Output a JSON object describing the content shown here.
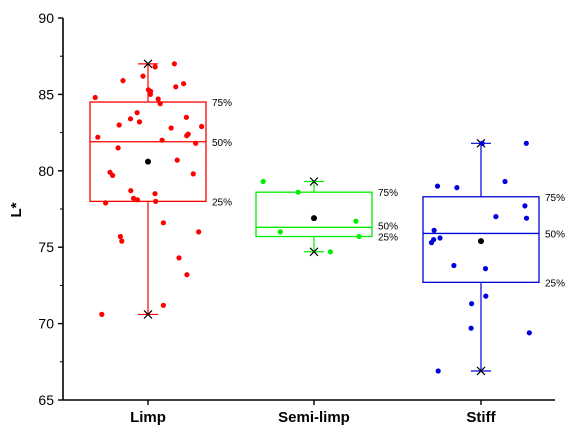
{
  "chart_data": {
    "type": "box",
    "ylabel": "L*",
    "ylim": [
      65,
      90
    ],
    "yticks": [
      "65",
      "70",
      "75",
      "80",
      "85",
      "90"
    ],
    "categories": [
      "Limp",
      "Semi-limp",
      "Stiff"
    ],
    "percentile_labels": [
      "75%",
      "50%",
      "25%"
    ],
    "groups": [
      {
        "name": "Limp",
        "color": "#ff0000",
        "whisker_low": 70.6,
        "q1": 78.0,
        "median": 81.9,
        "q3": 84.5,
        "whisker_high": 87.0,
        "mean": 80.6,
        "points": [
          87.0,
          86.8,
          86.2,
          85.9,
          85.7,
          85.5,
          85.3,
          85.2,
          85.0,
          84.8,
          84.7,
          84.4,
          83.8,
          83.5,
          83.4,
          83.2,
          83.0,
          82.9,
          82.8,
          82.4,
          82.3,
          82.2,
          82.0,
          81.8,
          81.5,
          80.7,
          79.9,
          79.8,
          79.7,
          78.7,
          78.5,
          78.2,
          78.1,
          78.0,
          77.9,
          76.6,
          76.0,
          75.7,
          75.4,
          74.3,
          73.2,
          71.2,
          70.6
        ]
      },
      {
        "name": "Semi-limp",
        "color": "#00ee00",
        "whisker_low": 74.7,
        "q1": 75.7,
        "median": 76.3,
        "q3": 78.6,
        "whisker_high": 79.3,
        "mean": 76.9,
        "points": [
          79.3,
          78.6,
          76.7,
          76.0,
          75.7,
          74.7
        ]
      },
      {
        "name": "Stiff",
        "color": "#0000dd",
        "whisker_low": 66.9,
        "q1": 72.7,
        "median": 75.9,
        "q3": 78.3,
        "whisker_high": 81.8,
        "mean": 75.4,
        "points": [
          81.8,
          81.8,
          79.3,
          79.0,
          78.9,
          77.7,
          77.0,
          76.9,
          76.1,
          75.6,
          75.5,
          75.3,
          73.8,
          73.6,
          71.8,
          71.3,
          69.7,
          69.4,
          66.9
        ]
      }
    ]
  }
}
